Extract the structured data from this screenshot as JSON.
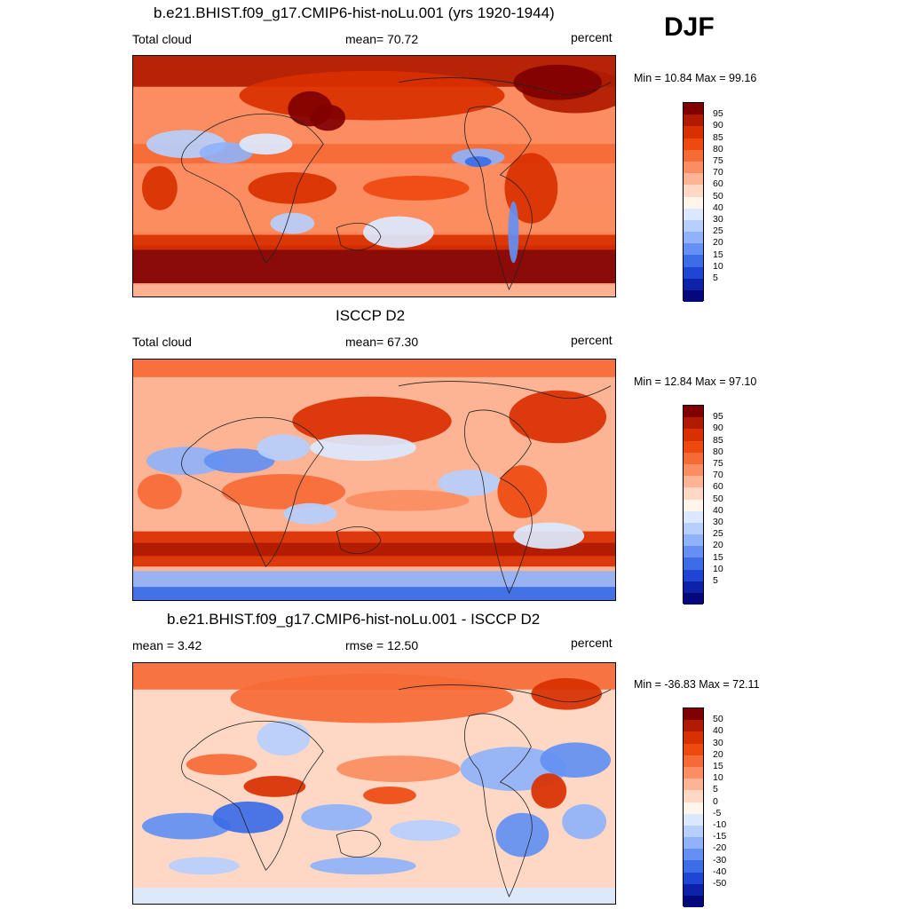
{
  "season": "DJF",
  "panels": [
    {
      "title": "b.e21.BHIST.f09_g17.CMIP6-hist-noLu.001 (yrs 1920-1944)",
      "left": "Total cloud",
      "center": "mean=  70.72",
      "right": "percent",
      "minmax": "Min =  10.84 Max =  99.16",
      "colorbar": {
        "labels": [
          "95",
          "90",
          "85",
          "80",
          "75",
          "70",
          "60",
          "50",
          "40",
          "30",
          "25",
          "20",
          "15",
          "10",
          "5"
        ],
        "colors": [
          "#800000",
          "#b01a00",
          "#d93000",
          "#ee4a10",
          "#f66a36",
          "#fb8d60",
          "#fdb494",
          "#fed8c4",
          "#fff5ea",
          "#dbe9ff",
          "#b6cffd",
          "#8fb2fa",
          "#6390f2",
          "#3c6ce6",
          "#1f45d3",
          "#0d22a8",
          "#05087a"
        ]
      },
      "style": "model"
    },
    {
      "title": "ISCCP D2",
      "left": "Total cloud",
      "center": "mean=  67.30",
      "right": "percent",
      "minmax": "Min =  12.84 Max =  97.10",
      "colorbar": {
        "labels": [
          "95",
          "90",
          "85",
          "80",
          "75",
          "70",
          "60",
          "50",
          "40",
          "30",
          "25",
          "20",
          "15",
          "10",
          "5"
        ],
        "colors": [
          "#800000",
          "#b01a00",
          "#d93000",
          "#ee4a10",
          "#f66a36",
          "#fb8d60",
          "#fdb494",
          "#fed8c4",
          "#fff5ea",
          "#dbe9ff",
          "#b6cffd",
          "#8fb2fa",
          "#6390f2",
          "#3c6ce6",
          "#1f45d3",
          "#0d22a8",
          "#05087a"
        ]
      },
      "style": "obs"
    },
    {
      "title": "b.e21.BHIST.f09_g17.CMIP6-hist-noLu.001 - ISCCP D2",
      "left": "mean =   3.42",
      "center": "rmse =  12.50",
      "right": "percent",
      "minmax": "Min = -36.83 Max =  72.11",
      "colorbar": {
        "labels": [
          "50",
          "40",
          "30",
          "20",
          "15",
          "10",
          "5",
          "0",
          "-5",
          "-10",
          "-15",
          "-20",
          "-30",
          "-40",
          "-50"
        ],
        "colors": [
          "#800000",
          "#b01a00",
          "#d93000",
          "#ee4a10",
          "#f66a36",
          "#fb8d60",
          "#fdb494",
          "#fed8c4",
          "#fff5ea",
          "#dbe9ff",
          "#b6cffd",
          "#8fb2fa",
          "#6390f2",
          "#3c6ce6",
          "#1f45d3",
          "#0d22a8",
          "#05087a"
        ]
      },
      "style": "diff"
    }
  ]
}
